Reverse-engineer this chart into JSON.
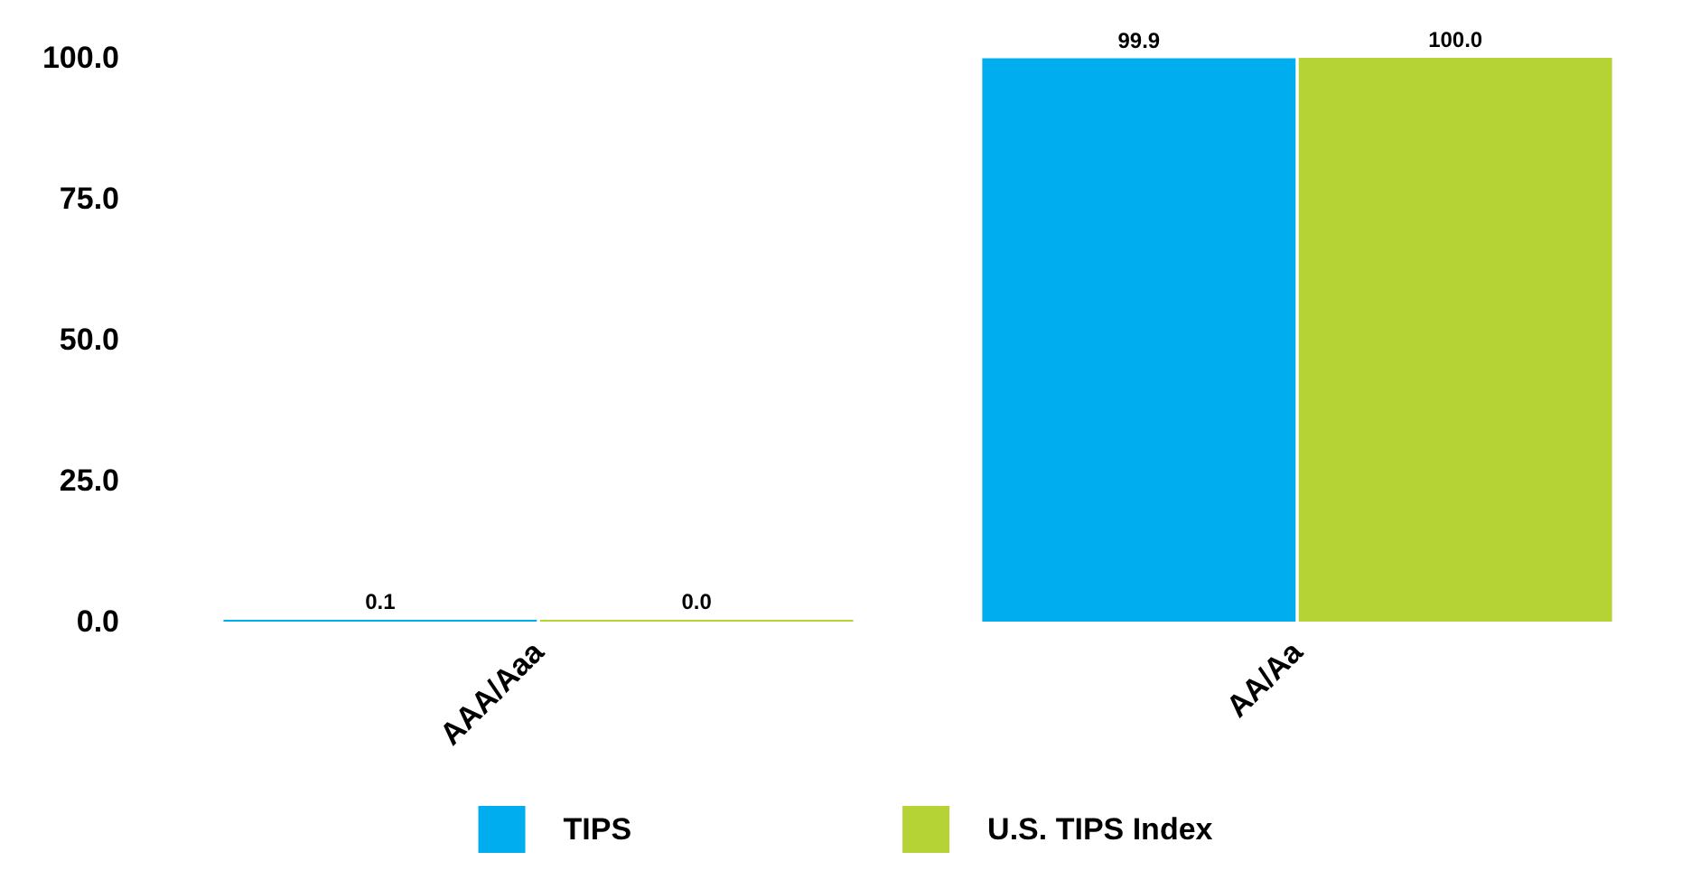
{
  "chart_data": {
    "type": "bar",
    "categories": [
      "AAA/Aaa",
      "AA/Aa"
    ],
    "series": [
      {
        "name": "TIPS",
        "color": "#00aeef",
        "values": [
          0.1,
          99.9
        ],
        "value_labels": [
          "0.1",
          "99.9"
        ]
      },
      {
        "name": "U.S. TIPS Index",
        "color": "#b5d334",
        "values": [
          0.0,
          100.0
        ],
        "value_labels": [
          "0.0",
          "100.0"
        ]
      }
    ],
    "ylim": [
      0,
      100
    ],
    "yticks": [
      {
        "value": 0,
        "label": "0.0"
      },
      {
        "value": 25,
        "label": "25.0"
      },
      {
        "value": 50,
        "label": "50.0"
      },
      {
        "value": 75,
        "label": "75.0"
      },
      {
        "value": 100,
        "label": "100.0"
      }
    ],
    "grid": false,
    "legend": "bottom"
  }
}
